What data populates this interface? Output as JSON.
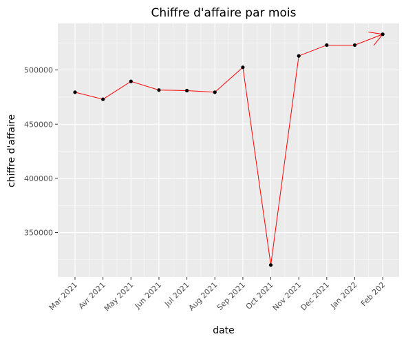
{
  "chart_data": {
    "type": "line",
    "title": "Chiffre d'affaire par mois",
    "xlabel": "date",
    "ylabel": "chiffre d'affaire",
    "x": [
      "Mar 2021",
      "Avr 2021",
      "May 2021",
      "Jun 2021",
      "Jul 2021",
      "Aug 2021",
      "Sep 2021",
      "Oct 2021",
      "Nov 2021",
      "Dec 2021",
      "Jan 2022",
      "Feb 202"
    ],
    "series": [
      {
        "values": [
          479500,
          473000,
          489500,
          481500,
          481000,
          479500,
          502500,
          320000,
          513000,
          523000,
          523000,
          533000
        ]
      }
    ],
    "y_ticks": [
      350000,
      400000,
      450000,
      500000
    ],
    "y_tick_labels": [
      "350000",
      "400000",
      "450000",
      "500000"
    ],
    "ylim": [
      309000,
      543000
    ],
    "grid": true,
    "line_color": "#ff0000",
    "point_color": "#000000",
    "panel_color": "#ebebeb",
    "grid_color": "#ffffff",
    "arrow_at_end": true
  }
}
